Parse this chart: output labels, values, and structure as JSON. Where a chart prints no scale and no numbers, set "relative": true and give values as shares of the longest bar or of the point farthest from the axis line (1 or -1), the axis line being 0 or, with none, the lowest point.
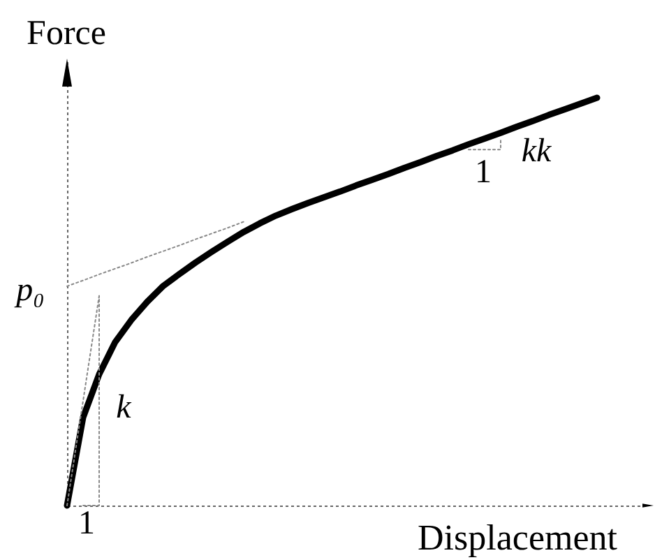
{
  "chart_data": {
    "type": "line",
    "relative": true,
    "xlabel": "Displacement",
    "ylabel": "Force",
    "marker": "none",
    "categories": [
      null,
      null,
      null,
      null,
      null,
      null,
      null,
      null,
      null,
      null,
      null,
      null,
      null,
      null,
      null,
      null,
      null,
      null,
      null,
      null,
      null,
      null,
      null,
      null,
      null,
      null,
      null,
      null,
      null,
      null,
      null,
      null,
      null,
      null,
      null,
      null,
      null
    ],
    "series": [
      {
        "color": "#000000",
        "line_style": "solid",
        "values": [
          0,
          0.216,
          0.322,
          0.401,
          0.455,
          0.5,
          0.539,
          0.568,
          0.596,
          0.622,
          0.647,
          0.671,
          0.692,
          0.711,
          0.727,
          0.742,
          0.756,
          0.77,
          0.785,
          0.799,
          0.813,
          0.828,
          0.842,
          0.857,
          0.871,
          0.886,
          0.9,
          0.914,
          0.929,
          0.943,
          0.958,
          0.972,
          0.986,
          1,
          null,
          null,
          null
        ]
      },
      {
        "type": "line",
        "color": "#888888",
        "line_style": "dotted",
        "values": [
          0.538,
          0.552,
          0.567,
          0.581,
          0.595,
          0.61,
          0.624,
          0.638,
          0.653,
          0.667,
          0.681,
          0.696,
          null,
          null,
          null,
          null,
          null,
          null,
          null,
          null,
          null,
          null,
          null,
          null,
          null,
          null,
          null,
          null,
          null,
          null,
          null,
          null,
          null,
          null,
          null,
          null,
          null
        ]
      },
      {
        "type": "line",
        "color": "#888888",
        "line_style": "dotted",
        "values": [
          0,
          0.257,
          0.514,
          null,
          null,
          null,
          null,
          null,
          null,
          null,
          null,
          null,
          null,
          null,
          null,
          null,
          null,
          null,
          null,
          null,
          null,
          null,
          null,
          null,
          null,
          null,
          null,
          null,
          null,
          null,
          null,
          null,
          null,
          null,
          null,
          null,
          null
        ]
      },
      {
        "type": "step",
        "color": "#888888",
        "line_style": "dotted",
        "values": [
          null,
          0,
          0.514,
          null,
          null,
          null,
          null,
          null,
          null,
          null,
          null,
          null,
          null,
          null,
          null,
          null,
          null,
          null,
          null,
          null,
          null,
          null,
          null,
          null,
          null,
          null,
          null,
          null,
          null,
          null,
          null,
          null,
          null,
          null,
          null,
          null,
          null
        ]
      },
      {
        "type": "step",
        "color": "#888888",
        "line_style": "dotted",
        "values": [
          null,
          null,
          null,
          null,
          null,
          null,
          null,
          null,
          null,
          null,
          null,
          null,
          null,
          null,
          null,
          null,
          null,
          null,
          null,
          null,
          null,
          null,
          null,
          null,
          null,
          0.873,
          0.873,
          0.897,
          null,
          null,
          null,
          null,
          null,
          null,
          null,
          null,
          null
        ]
      }
    ],
    "annotations": [
      "p₀",
      "k",
      "1",
      "kk",
      "1"
    ]
  }
}
